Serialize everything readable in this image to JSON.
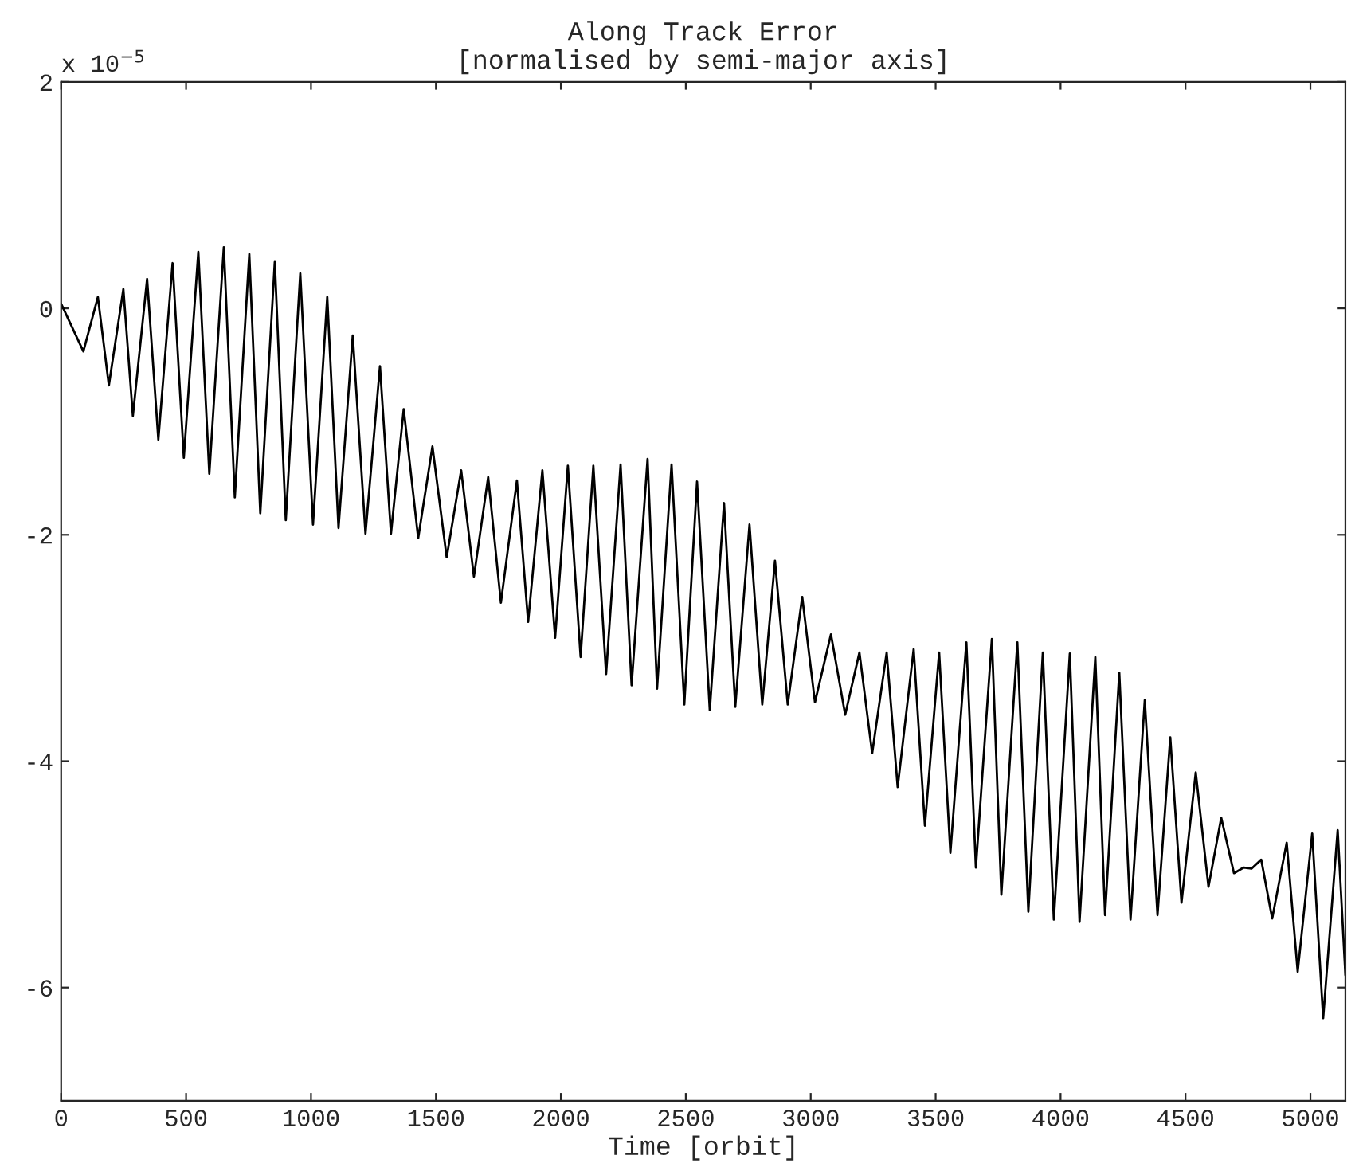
{
  "chart_data": {
    "type": "line",
    "title": "Along Track Error\n[normalised by semi-major axis]",
    "xlabel": "Time [orbit]",
    "annotations": [
      "x 10$^{−5}$"
    ],
    "x": [
      0,
      89,
      147,
      191,
      249,
      287,
      344,
      389,
      446,
      491,
      549,
      593,
      651,
      695,
      753,
      797,
      855,
      899,
      957,
      1008,
      1065,
      1110,
      1167,
      1218,
      1276,
      1320,
      1371,
      1429,
      1486,
      1543,
      1601,
      1652,
      1709,
      1760,
      1824,
      1869,
      1926,
      1977,
      2028,
      2079,
      2130,
      2181,
      2239,
      2283,
      2347,
      2385,
      2443,
      2494,
      2545,
      2596,
      2653,
      2698,
      2755,
      2806,
      2857,
      2908,
      2966,
      3017,
      3081,
      3138,
      3195,
      3246,
      3304,
      3348,
      3412,
      3457,
      3514,
      3559,
      3623,
      3661,
      3725,
      3763,
      3827,
      3871,
      3929,
      3973,
      4037,
      4076,
      4139,
      4178,
      4235,
      4280,
      4337,
      4388,
      4439,
      4484,
      4541,
      4592,
      4643,
      4694,
      4733,
      4764,
      4803,
      4847,
      4905,
      4949,
      5007,
      5051,
      5109,
      5140
    ],
    "series": [
      {
        "color": "#000000",
        "values": [
          0.04,
          -0.38,
          0.1,
          -0.68,
          0.17,
          -0.95,
          0.26,
          -1.16,
          0.4,
          -1.32,
          0.5,
          -1.46,
          0.54,
          -1.67,
          0.48,
          -1.81,
          0.41,
          -1.87,
          0.31,
          -1.91,
          0.1,
          -1.94,
          -0.24,
          -1.99,
          -0.51,
          -1.99,
          -0.89,
          -2.03,
          -1.22,
          -2.2,
          -1.43,
          -2.37,
          -1.49,
          -2.6,
          -1.52,
          -2.77,
          -1.43,
          -2.91,
          -1.39,
          -3.08,
          -1.39,
          -3.23,
          -1.38,
          -3.33,
          -1.33,
          -3.36,
          -1.38,
          -3.5,
          -1.53,
          -3.55,
          -1.72,
          -3.52,
          -1.91,
          -3.5,
          -2.23,
          -3.5,
          -2.55,
          -3.48,
          -2.88,
          -3.59,
          -3.04,
          -3.93,
          -3.04,
          -4.23,
          -3.01,
          -4.57,
          -3.04,
          -4.81,
          -2.95,
          -4.94,
          -2.92,
          -5.18,
          -2.95,
          -5.33,
          -3.04,
          -5.4,
          -3.05,
          -5.42,
          -3.08,
          -5.36,
          -3.22,
          -5.4,
          -3.46,
          -5.36,
          -3.79,
          -5.25,
          -4.1,
          -5.11,
          -4.5,
          -4.99,
          -4.94,
          -4.95,
          -4.87,
          -5.39,
          -4.72,
          -5.86,
          -4.64,
          -6.27,
          -4.61,
          -5.89
        ]
      }
    ],
    "xlim": [
      0,
      5140
    ],
    "ylim": [
      -7,
      2
    ],
    "xticks": [
      0,
      500,
      1000,
      1500,
      2000,
      2500,
      3000,
      3500,
      4000,
      4500,
      5000
    ],
    "yticks": [
      -6,
      -4,
      -2,
      0,
      2
    ],
    "grid": false,
    "marker": "none",
    "line_style": "solid"
  }
}
